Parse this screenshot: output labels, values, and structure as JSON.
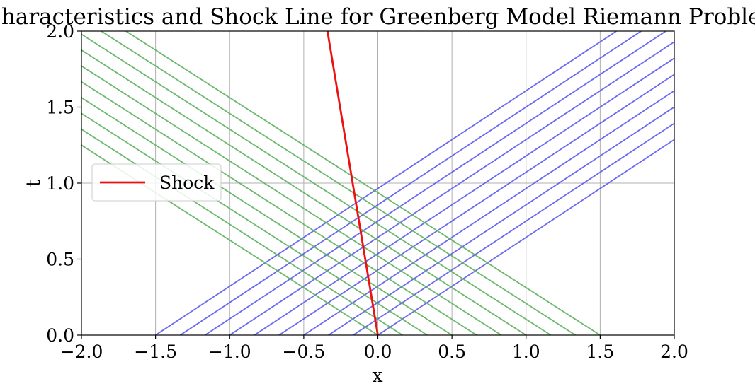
{
  "chart_data": {
    "type": "line",
    "title": "Characteristics and Shock Line for Greenberg Model Riemann Problem",
    "xlabel": "x",
    "ylabel": "t",
    "xlim": [
      -2.0,
      2.0
    ],
    "ylim": [
      0.0,
      2.0
    ],
    "xticks": [
      "−2.0",
      "−1.5",
      "−1.0",
      "−0.5",
      "0.0",
      "0.5",
      "1.0",
      "1.5",
      "2.0"
    ],
    "yticks": [
      "0.0",
      "0.5",
      "1.0",
      "1.5",
      "2.0"
    ],
    "grid": true,
    "legend": {
      "placement": "center-left",
      "entries": [
        "Shock"
      ]
    },
    "colors": {
      "left_characteristics": "#5a5af0",
      "right_characteristics": "#5cb05c",
      "shock": "#ee1111"
    },
    "series": [
      {
        "name": "Shock",
        "x": [
          0.0,
          -0.34
        ],
        "y": [
          0.0,
          2.0
        ]
      }
    ],
    "left_characteristics": {
      "x0": [
        -1.5,
        -1.3333,
        -1.1667,
        -1.0,
        -0.8333,
        -0.6667,
        -0.5,
        -0.3333,
        -0.1667,
        0.0
      ],
      "slope_dx_dt": 1.555
    },
    "right_characteristics": {
      "x0": [
        0.0,
        0.1667,
        0.3333,
        0.5,
        0.6667,
        0.8333,
        1.0,
        1.1667,
        1.3333,
        1.5
      ],
      "slope_dx_dt": -1.6
    }
  }
}
